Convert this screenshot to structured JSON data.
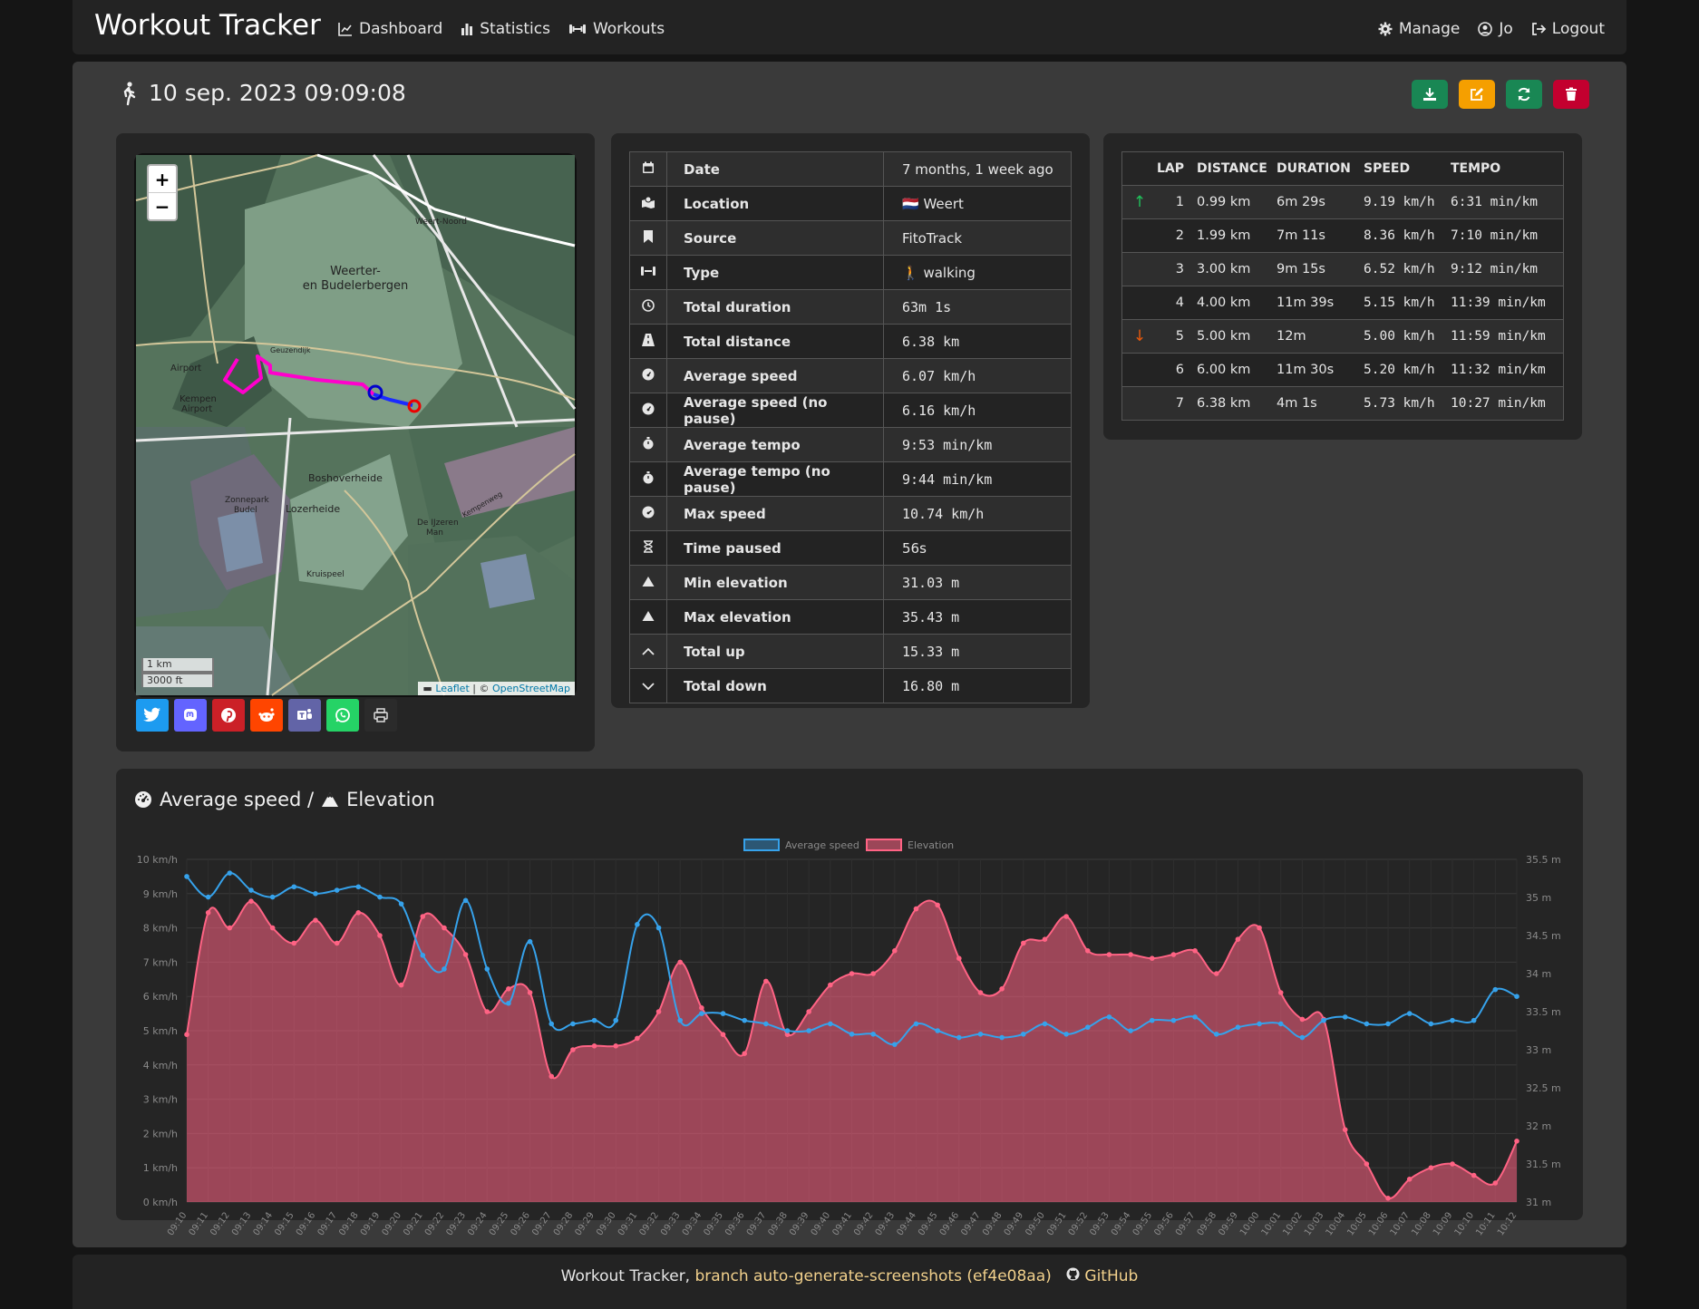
{
  "nav": {
    "brand": "Workout Tracker",
    "links": [
      "Dashboard",
      "Statistics",
      "Workouts"
    ],
    "manage": "Manage",
    "user": "Jo",
    "logout": "Logout"
  },
  "workout": {
    "title": "10 sep. 2023 09:09:08",
    "icon": "person-walking-icon"
  },
  "actions": [
    {
      "name": "download-button",
      "icon": "download-icon",
      "color": "#198754"
    },
    {
      "name": "edit-button",
      "icon": "edit-icon",
      "color": "#f59f00"
    },
    {
      "name": "refresh-button",
      "icon": "refresh-icon",
      "color": "#198754"
    },
    {
      "name": "delete-button",
      "icon": "trash-icon",
      "color": "#c3002f"
    }
  ],
  "map": {
    "zoom_in": "+",
    "zoom_out": "−",
    "scale_metric": "1 km",
    "scale_imperial": "3000 ft",
    "attribution_leaflet": "Leaflet",
    "attribution_sep": " | © ",
    "attribution_osm": "OpenStreetMap",
    "labels": [
      "Weerter-",
      "en Budelerbergen",
      "Airport",
      "Kempen",
      "Airport",
      "Boshoverheide",
      "Lozerheide",
      "Zonnepark",
      "Budel",
      "Kruispeel",
      "De IJzeren",
      "Man",
      "Weert-Noord",
      "Geuzendijk",
      "Kempenweg"
    ]
  },
  "share": [
    {
      "name": "twitter-share-button",
      "icon": "twitter-icon",
      "color": "#1d9bf0"
    },
    {
      "name": "mastodon-share-button",
      "icon": "mastodon-icon",
      "color": "#6364ff"
    },
    {
      "name": "pinterest-share-button",
      "icon": "pinterest-icon",
      "color": "#cb2027"
    },
    {
      "name": "reddit-share-button",
      "icon": "reddit-icon",
      "color": "#ff4500"
    },
    {
      "name": "teams-share-button",
      "icon": "teams-icon",
      "color": "#6264a7"
    },
    {
      "name": "whatsapp-share-button",
      "icon": "whatsapp-icon",
      "color": "#25d366"
    },
    {
      "name": "print-button",
      "icon": "print-icon",
      "color": "#2b2b2b"
    }
  ],
  "stats": [
    {
      "icon": "calendar-icon",
      "label": "Date",
      "value": "7 months, 1 week ago"
    },
    {
      "icon": "map-location-icon",
      "label": "Location",
      "value": "🇳🇱 Weert"
    },
    {
      "icon": "bookmark-icon",
      "label": "Source",
      "value": "FitoTrack"
    },
    {
      "icon": "dumbbell-icon",
      "label": "Type",
      "value": "🚶 walking"
    },
    {
      "icon": "clock-icon",
      "label": "Total duration",
      "value": "63m 1s"
    },
    {
      "icon": "road-icon",
      "label": "Total distance",
      "value": "6.38 km"
    },
    {
      "icon": "gauge-icon",
      "label": "Average speed",
      "value": "6.07 km/h"
    },
    {
      "icon": "gauge-icon",
      "label": "Average speed (no pause)",
      "value": "6.16 km/h"
    },
    {
      "icon": "stopwatch-icon",
      "label": "Average tempo",
      "value": "9:53 min/km"
    },
    {
      "icon": "stopwatch-icon",
      "label": "Average tempo (no pause)",
      "value": "9:44 min/km"
    },
    {
      "icon": "gauge-high-icon",
      "label": "Max speed",
      "value": "10.74 km/h"
    },
    {
      "icon": "hourglass-icon",
      "label": "Time paused",
      "value": "56s"
    },
    {
      "icon": "mountain-icon",
      "label": "Min elevation",
      "value": "31.03 m"
    },
    {
      "icon": "mountain-icon",
      "label": "Max elevation",
      "value": "35.43 m"
    },
    {
      "icon": "chevron-up-icon",
      "label": "Total up",
      "value": "15.33 m"
    },
    {
      "icon": "chevron-down-icon",
      "label": "Total down",
      "value": "16.80 m"
    }
  ],
  "laps": {
    "headers": [
      "LAP",
      "DISTANCE",
      "DURATION",
      "SPEED",
      "TEMPO"
    ],
    "rows": [
      {
        "marker": "↑",
        "lap": "1",
        "distance": "0.99 km",
        "duration": "6m 29s",
        "speed": "9.19 km/h",
        "tempo": "6:31 min/km"
      },
      {
        "marker": "",
        "lap": "2",
        "distance": "1.99 km",
        "duration": "7m 11s",
        "speed": "8.36 km/h",
        "tempo": "7:10 min/km"
      },
      {
        "marker": "",
        "lap": "3",
        "distance": "3.00 km",
        "duration": "9m 15s",
        "speed": "6.52 km/h",
        "tempo": "9:12 min/km"
      },
      {
        "marker": "",
        "lap": "4",
        "distance": "4.00 km",
        "duration": "11m 39s",
        "speed": "5.15 km/h",
        "tempo": "11:39 min/km"
      },
      {
        "marker": "↓",
        "lap": "5",
        "distance": "5.00 km",
        "duration": "12m",
        "speed": "5.00 km/h",
        "tempo": "11:59 min/km"
      },
      {
        "marker": "",
        "lap": "6",
        "distance": "6.00 km",
        "duration": "11m 30s",
        "speed": "5.20 km/h",
        "tempo": "11:32 min/km"
      },
      {
        "marker": "",
        "lap": "7",
        "distance": "6.38 km",
        "duration": "4m 1s",
        "speed": "5.73 km/h",
        "tempo": "10:27 min/km"
      }
    ],
    "colors": {
      "up": "#20c05a",
      "down": "#e8590c"
    }
  },
  "chart": {
    "title_part1": "Average speed /",
    "title_part2": "Elevation"
  },
  "chart_data": {
    "type": "line",
    "legend_position": "top",
    "x": [
      "09:10",
      "09:11",
      "09:12",
      "09:13",
      "09:14",
      "09:15",
      "09:16",
      "09:17",
      "09:18",
      "09:19",
      "09:20",
      "09:21",
      "09:22",
      "09:23",
      "09:24",
      "09:25",
      "09:26",
      "09:27",
      "09:28",
      "09:29",
      "09:30",
      "09:31",
      "09:32",
      "09:33",
      "09:34",
      "09:35",
      "09:36",
      "09:37",
      "09:38",
      "09:39",
      "09:40",
      "09:41",
      "09:42",
      "09:43",
      "09:44",
      "09:45",
      "09:46",
      "09:47",
      "09:48",
      "09:49",
      "09:50",
      "09:51",
      "09:52",
      "09:53",
      "09:54",
      "09:55",
      "09:56",
      "09:57",
      "09:58",
      "09:59",
      "10:00",
      "10:01",
      "10:02",
      "10:03",
      "10:04",
      "10:05",
      "10:06",
      "10:07",
      "10:08",
      "10:09",
      "10:10",
      "10:11",
      "10:12"
    ],
    "series": [
      {
        "name": "Average speed",
        "axis": "left",
        "color": "#36a2eb",
        "fill": false,
        "values": [
          9.5,
          8.9,
          9.6,
          9.1,
          8.9,
          9.2,
          9.0,
          9.1,
          9.2,
          8.9,
          8.7,
          7.2,
          6.8,
          8.8,
          6.8,
          5.8,
          7.6,
          5.2,
          5.2,
          5.3,
          5.3,
          8.1,
          8.0,
          5.3,
          5.5,
          5.5,
          5.3,
          5.2,
          5.0,
          5.0,
          5.2,
          4.9,
          4.9,
          4.6,
          5.2,
          5.0,
          4.8,
          4.9,
          4.8,
          4.9,
          5.2,
          4.9,
          5.1,
          5.4,
          5.0,
          5.3,
          5.3,
          5.4,
          4.9,
          5.1,
          5.2,
          5.2,
          4.8,
          5.3,
          5.4,
          5.2,
          5.2,
          5.5,
          5.2,
          5.3,
          5.3,
          6.2,
          6.0
        ]
      },
      {
        "name": "Elevation",
        "axis": "right",
        "color": "#ff6384",
        "fill": true,
        "values": [
          33.2,
          34.8,
          34.6,
          34.95,
          34.6,
          34.4,
          34.7,
          34.4,
          34.8,
          34.5,
          33.85,
          34.75,
          34.6,
          34.25,
          33.5,
          33.8,
          33.75,
          32.65,
          33.0,
          33.05,
          33.05,
          33.15,
          33.5,
          34.15,
          33.55,
          33.2,
          32.95,
          33.9,
          33.2,
          33.5,
          33.85,
          34.0,
          34.0,
          34.3,
          34.85,
          34.9,
          34.2,
          33.75,
          33.8,
          34.4,
          34.45,
          34.75,
          34.3,
          34.25,
          34.25,
          34.2,
          34.25,
          34.3,
          34.0,
          34.45,
          34.6,
          33.75,
          33.4,
          33.4,
          31.95,
          31.5,
          31.05,
          31.3,
          31.45,
          31.5,
          31.35,
          31.25,
          31.8
        ]
      }
    ],
    "y_left": {
      "min": 0,
      "max": 10,
      "ticks": [
        "0 km/h",
        "1 km/h",
        "2 km/h",
        "3 km/h",
        "4 km/h",
        "5 km/h",
        "6 km/h",
        "7 km/h",
        "8 km/h",
        "9 km/h",
        "10 km/h"
      ]
    },
    "y_right": {
      "min": 31,
      "max": 35.5,
      "ticks": [
        "31 m",
        "31.5 m",
        "32 m",
        "32.5 m",
        "33 m",
        "33.5 m",
        "34 m",
        "34.5 m",
        "35 m",
        "35.5 m"
      ]
    },
    "grid": true
  },
  "footer": {
    "text": "Workout Tracker, ",
    "branch": "branch auto-generate-screenshots (ef4e08aa)",
    "github": "GitHub"
  }
}
